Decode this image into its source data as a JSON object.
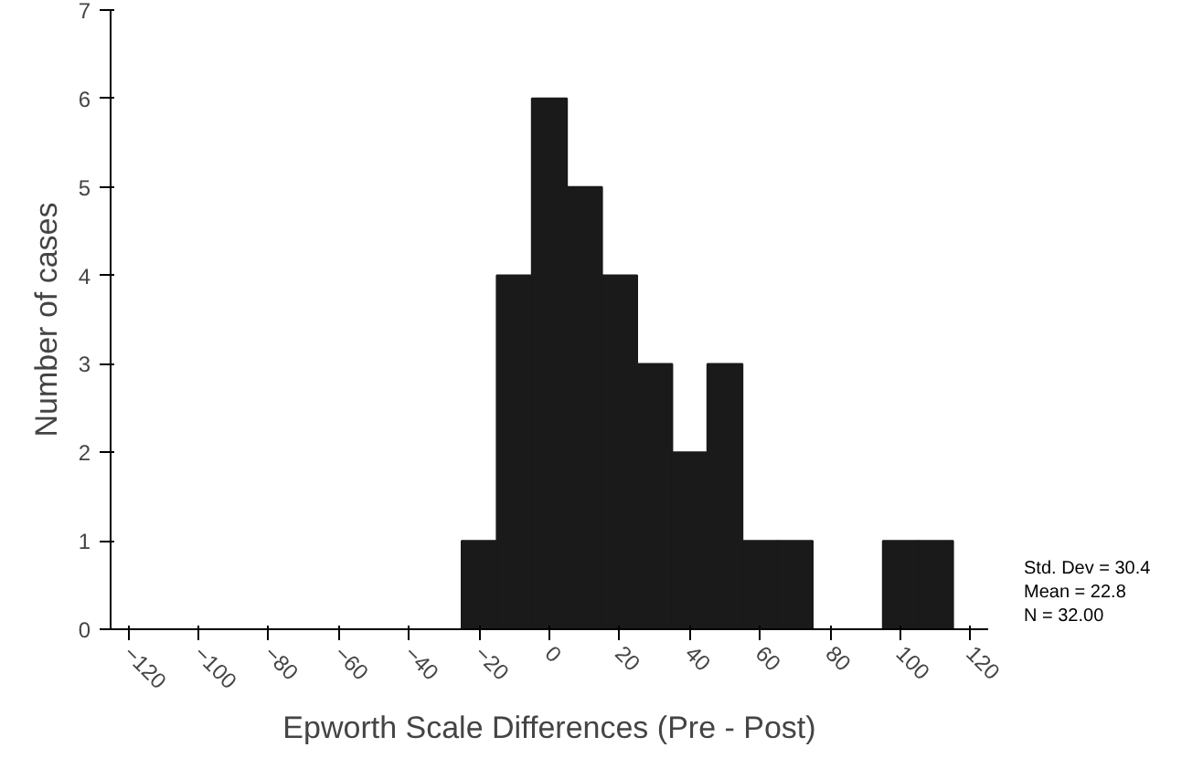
{
  "chart_data": {
    "type": "histogram",
    "xlabel": "Epworth Scale Differences (Pre - Post)",
    "ylabel": "Number of cases",
    "bins": [
      -25,
      -15,
      -5,
      5,
      15,
      25,
      35,
      45,
      55,
      65,
      75,
      85,
      95,
      105,
      115
    ],
    "values": [
      1,
      4,
      6,
      5,
      4,
      3,
      2,
      3,
      1,
      1,
      0,
      0,
      1,
      1
    ],
    "color": "#1a1a1a",
    "xlim": [
      -125,
      125
    ],
    "ylim": [
      0,
      7
    ],
    "xticks": [
      -120,
      -100,
      -80,
      -60,
      -40,
      -20,
      0,
      20,
      40,
      60,
      80,
      100,
      120
    ],
    "yticks": [
      0,
      1,
      2,
      3,
      4,
      5,
      6,
      7
    ],
    "grid": false,
    "annotations": [
      "Std. Dev = 30.4",
      "Mean = 22.8",
      "N = 32.00"
    ]
  }
}
